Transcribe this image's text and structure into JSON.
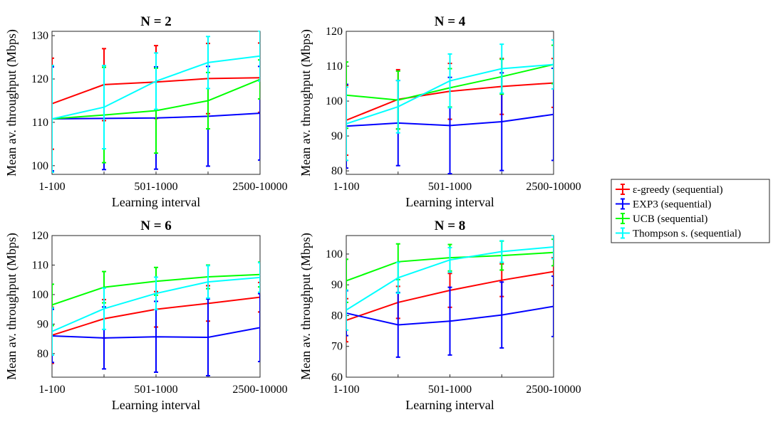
{
  "chart_data": [
    {
      "type": "line",
      "title": "N = 2",
      "xlabel": "Learning interval",
      "ylabel": "Mean av. throughput (Mbps)",
      "x_positions": [
        1,
        2,
        3,
        4,
        5
      ],
      "x_tick_labels": [
        "1-100",
        "",
        "501-1000",
        "",
        "2500-10000"
      ],
      "ylim": [
        98,
        131
      ],
      "yticks": [
        100,
        110,
        120,
        130
      ],
      "series": [
        {
          "name": "ε-greedy (sequential)",
          "color": "#ff0000",
          "values": [
            114.3,
            118.7,
            119.3,
            120.1,
            120.3
          ],
          "err": [
            10.5,
            8.3,
            8.4,
            8.1,
            8.0
          ]
        },
        {
          "name": "EXP3 (sequential)",
          "color": "#0000ff",
          "values": [
            110.8,
            110.9,
            111.0,
            111.4,
            112.1
          ],
          "err": [
            12.0,
            11.8,
            11.8,
            11.5,
            10.8
          ]
        },
        {
          "name": "UCB (sequential)",
          "color": "#00ff00",
          "values": [
            110.8,
            111.7,
            112.7,
            115.0,
            119.9
          ],
          "err": [
            12.3,
            11.0,
            9.8,
            6.5,
            4.5
          ]
        },
        {
          "name": "Thompson s. (sequential)",
          "color": "#00ffff",
          "values": [
            110.8,
            113.5,
            119.5,
            123.8,
            125.3
          ],
          "err": [
            12.3,
            9.6,
            6.5,
            6.0,
            5.8
          ]
        }
      ]
    },
    {
      "type": "line",
      "title": "N = 4",
      "xlabel": "Learning interval",
      "ylabel": "Mean av. throughput (Mbps)",
      "x_positions": [
        1,
        2,
        3,
        4,
        5
      ],
      "x_tick_labels": [
        "1-100",
        "",
        "501-1000",
        "",
        "2500-10000"
      ],
      "ylim": [
        79,
        120
      ],
      "yticks": [
        80,
        90,
        100,
        110,
        120
      ],
      "series": [
        {
          "name": "ε-greedy (sequential)",
          "color": "#ff0000",
          "values": [
            94.5,
            100.5,
            102.8,
            104.2,
            105.2
          ],
          "err": [
            10.0,
            8.5,
            8.0,
            8.0,
            7.0
          ]
        },
        {
          "name": "EXP3 (sequential)",
          "color": "#0000ff",
          "values": [
            92.8,
            93.7,
            93.0,
            94.1,
            96.2
          ],
          "err": [
            12.0,
            12.2,
            13.8,
            14.0,
            13.2
          ]
        },
        {
          "name": "UCB (sequential)",
          "color": "#00ff00",
          "values": [
            101.7,
            100.3,
            103.8,
            107.0,
            110.5
          ],
          "err": [
            9.5,
            8.3,
            5.5,
            5.0,
            5.5
          ]
        },
        {
          "name": "Thompson s. (sequential)",
          "color": "#00ffff",
          "values": [
            93.5,
            98.4,
            105.8,
            109.3,
            110.5
          ],
          "err": [
            10.5,
            7.5,
            7.7,
            7.0,
            7.0
          ]
        }
      ]
    },
    {
      "type": "line",
      "title": "N = 6",
      "xlabel": "Learning interval",
      "ylabel": "Mean av. throughput (Mbps)",
      "x_positions": [
        1,
        2,
        3,
        4,
        5
      ],
      "x_tick_labels": [
        "1-100",
        "",
        "501-1000",
        "",
        "2500-10000"
      ],
      "ylim": [
        72,
        120
      ],
      "yticks": [
        80,
        90,
        100,
        110,
        120
      ],
      "series": [
        {
          "name": "ε-greedy (sequential)",
          "color": "#ff0000",
          "values": [
            86.2,
            91.8,
            95.0,
            97.0,
            99.1
          ],
          "err": [
            9.5,
            6.5,
            6.0,
            6.0,
            5.0
          ]
        },
        {
          "name": "EXP3 (sequential)",
          "color": "#0000ff",
          "values": [
            86.0,
            85.3,
            85.7,
            85.5,
            88.8
          ],
          "err": [
            9.0,
            10.5,
            12.0,
            13.0,
            11.5
          ]
        },
        {
          "name": "UCB (sequential)",
          "color": "#00ff00",
          "values": [
            96.5,
            102.5,
            104.5,
            106.0,
            106.8
          ],
          "err": [
            7.0,
            5.3,
            4.7,
            4.0,
            4.2
          ]
        },
        {
          "name": "Thompson s. (sequential)",
          "color": "#00ffff",
          "values": [
            87.5,
            95.2,
            100.4,
            104.3,
            105.8
          ],
          "err": [
            8.0,
            7.0,
            5.5,
            5.5,
            5.0
          ]
        }
      ]
    },
    {
      "type": "line",
      "title": "N = 8",
      "xlabel": "Learning interval",
      "ylabel": "Mean av. throughput (Mbps)",
      "x_positions": [
        1,
        2,
        3,
        4,
        5
      ],
      "x_tick_labels": [
        "1-100",
        "",
        "501-1000",
        "",
        "2500-10000"
      ],
      "ylim": [
        60,
        106
      ],
      "yticks": [
        60,
        70,
        80,
        90,
        100
      ],
      "series": [
        {
          "name": "ε-greedy (sequential)",
          "color": "#ff0000",
          "values": [
            78.5,
            84.3,
            88.2,
            91.5,
            94.3
          ],
          "err": [
            7.0,
            5.2,
            5.5,
            5.3,
            4.5
          ]
        },
        {
          "name": "EXP3 (sequential)",
          "color": "#0000ff",
          "values": [
            80.8,
            77.0,
            78.2,
            80.2,
            83.0
          ],
          "err": [
            7.3,
            10.5,
            11.0,
            10.7,
            9.8
          ]
        },
        {
          "name": "UCB (sequential)",
          "color": "#00ff00",
          "values": [
            91.3,
            97.5,
            98.8,
            99.5,
            100.5
          ],
          "err": [
            7.0,
            5.8,
            4.3,
            4.7,
            4.3
          ]
        },
        {
          "name": "Thompson s. (sequential)",
          "color": "#00ffff",
          "values": [
            81.8,
            92.3,
            98.1,
            100.8,
            102.3
          ],
          "err": [
            6.5,
            5.0,
            4.0,
            3.5,
            3.8
          ]
        }
      ]
    }
  ],
  "legend": {
    "placement": "right",
    "items": [
      {
        "label": "ε-greedy (sequential)",
        "color": "#ff0000"
      },
      {
        "label": "EXP3 (sequential)",
        "color": "#0000ff"
      },
      {
        "label": "UCB (sequential)",
        "color": "#00ff00"
      },
      {
        "label": "Thompson s. (sequential)",
        "color": "#00ffff"
      }
    ]
  }
}
